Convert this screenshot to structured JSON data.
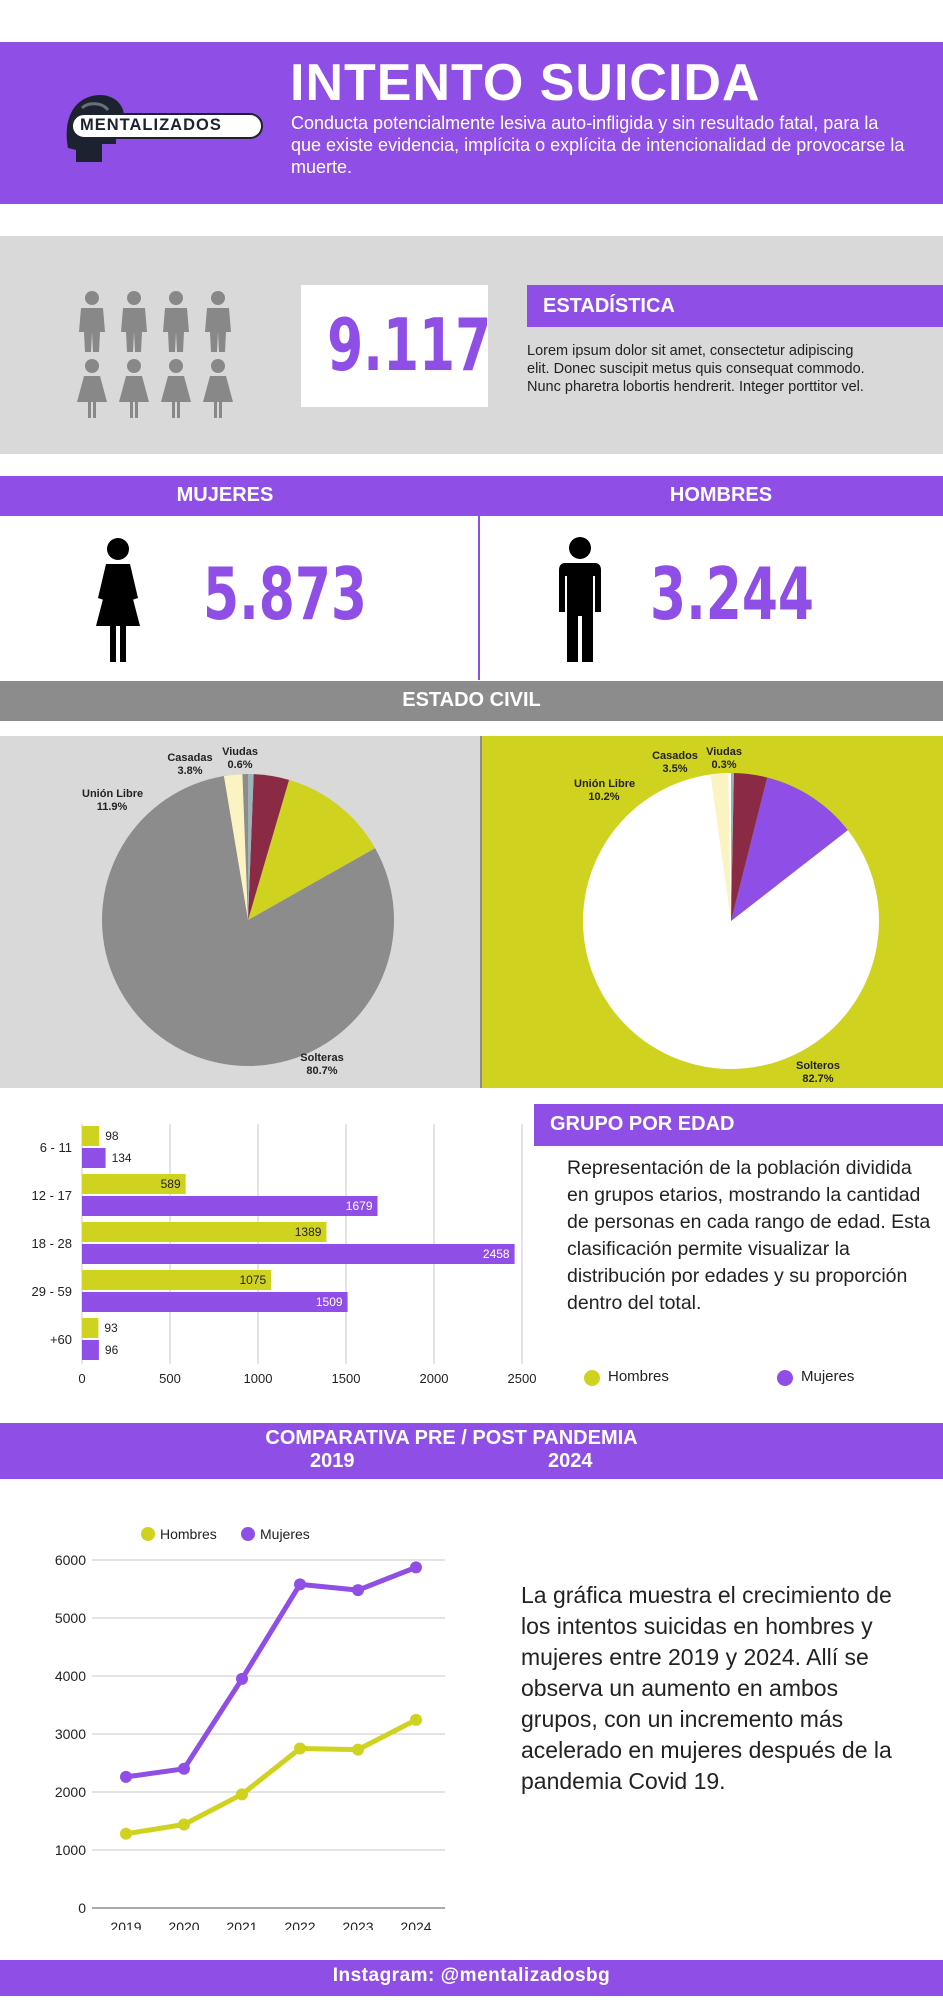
{
  "header": {
    "brand": "MENTALIZADOS",
    "title": "INTENTO SUICIDA",
    "subtitle": "Conducta potencialmente lesiva auto-infligida y sin resultado fatal, para la que existe evidencia, implícita o explícita de intencionalidad de provocarse la muerte."
  },
  "stats": {
    "total": "9.117",
    "tag": "ESTADÍSTICA",
    "body": "Lorem ipsum dolor sit amet, consectetur adipiscing elit. Donec suscipit metus quis consequat commodo. Nunc pharetra lobortis hendrerit. Integer porttitor vel."
  },
  "gender": {
    "women_label": "MUJERES",
    "women_value": "5.873",
    "men_label": "HOMBRES",
    "men_value": "3.244"
  },
  "civil": {
    "label": "ESTADO CIVIL"
  },
  "age": {
    "tag": "GRUPO POR EDAD",
    "body": "Representación de la población dividida en grupos etarios, mostrando la cantidad de personas en cada rango de edad. Esta clasificación permite visualizar la distribución por edades y su proporción dentro del total.",
    "legend_men": "Hombres",
    "legend_women": "Mujeres"
  },
  "comparison": {
    "title": "COMPARATIVA PRE / POST PANDEMIA",
    "year_start": "2019",
    "year_end": "2024",
    "body": "La gráfica muestra el crecimiento de los intentos suicidas en hombres y mujeres entre 2019 y 2024. Allí se observa un aumento en ambos grupos, con un incremento más acelerado en mujeres después de la pandemia Covid 19."
  },
  "footer": {
    "text": "Instagram: @mentalizadosbg"
  },
  "colors": {
    "purple": "#8f4fe6",
    "lime": "#cfd21f",
    "gray": "#8c8c8c",
    "maroon": "#8b2a45",
    "cream": "#fcf3c2",
    "steel": "#9eb3b8"
  },
  "chart_data": [
    {
      "type": "pie",
      "title": "",
      "slices": [
        {
          "label": "Solteras",
          "pct": "80.7%",
          "value": 80.7,
          "color": "#8c8c8c"
        },
        {
          "label": "Unión Libre",
          "pct": "11.9%",
          "value": 11.9,
          "color": "#cfd21f"
        },
        {
          "label": "Casadas",
          "pct": "3.8%",
          "value": 3.8,
          "color": "#8b2a45"
        },
        {
          "label": "Viudas",
          "pct": "0.6%",
          "value": 0.6,
          "color": "#9eb3b8"
        }
      ]
    },
    {
      "type": "pie",
      "title": "",
      "slices": [
        {
          "label": "Solteros",
          "pct": "82.7%",
          "value": 82.7,
          "color": "#ffffff"
        },
        {
          "label": "Unión Libre",
          "pct": "10.2%",
          "value": 10.2,
          "color": "#8f4fe6"
        },
        {
          "label": "Casados",
          "pct": "3.5%",
          "value": 3.5,
          "color": "#8b2a45"
        },
        {
          "label": "Viudas",
          "pct": "0.3%",
          "value": 0.3,
          "color": "#9eb3b8"
        }
      ]
    },
    {
      "type": "bar",
      "orientation": "horizontal",
      "categories": [
        "6 - 11",
        "12 - 17",
        "18 - 28",
        "29 - 59",
        "+60"
      ],
      "series": [
        {
          "name": "Hombres",
          "values": [
            98,
            589,
            1389,
            1075,
            93
          ]
        },
        {
          "name": "Mujeres",
          "values": [
            134,
            1679,
            2458,
            1509,
            96
          ]
        }
      ],
      "xticks": [
        "0",
        "500",
        "1000",
        "1500",
        "2000",
        "2500"
      ],
      "xlim": [
        0,
        2500
      ]
    },
    {
      "type": "line",
      "x": [
        "2019",
        "2020",
        "2021",
        "2022",
        "2023",
        "2024"
      ],
      "series": [
        {
          "name": "Hombres",
          "values": [
            1280,
            1440,
            1960,
            2750,
            2730,
            3244
          ]
        },
        {
          "name": "Mujeres",
          "values": [
            2260,
            2400,
            3950,
            5580,
            5480,
            5873
          ]
        }
      ],
      "yticks": [
        "0",
        "1000",
        "2000",
        "3000",
        "4000",
        "5000",
        "6000"
      ],
      "ylim": [
        0,
        6000
      ],
      "grid": true,
      "legend": "top"
    }
  ]
}
